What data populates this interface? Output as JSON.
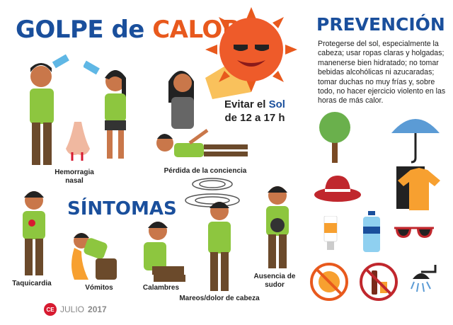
{
  "header": {
    "title_part1": "GOLPE de",
    "title_part2": "CALOR"
  },
  "sun_message": {
    "line1_prefix": "Evitar el",
    "line1_highlight": "Sol",
    "line2": "de 12 a 17 h"
  },
  "symptoms": {
    "title": "SÍNTOMAS",
    "items": [
      "Hemorragia nasal",
      "Pérdida de la conciencia",
      "Taquicardia",
      "Vómitos",
      "Calambres",
      "Mareos/dolor de cabeza",
      "Ausencia de sudor"
    ]
  },
  "prevention": {
    "title": "PREVENCIÓN",
    "text": "Protegerse del sol, especialmente la cabeza; usar ropas claras y holgadas; manenerse bien hidratado; no tomar bebidas alcohólicas ni azucaradas; tomar duchas no muy frías y, sobre todo, no hacer ejercicio violento en las horas de más calor.",
    "icons": [
      "tree-icon",
      "umbrella-icon",
      "hat-icon",
      "shirt-icon",
      "sunscreen-icon",
      "water-bottle-icon",
      "sunglasses-icon",
      "no-sun-icon",
      "no-alcohol-icon",
      "shower-icon"
    ]
  },
  "footer": {
    "logo": "CE",
    "month": "JULIO",
    "year": "2017"
  },
  "colors": {
    "blue": "#1a4f9c",
    "orange": "#e8591d",
    "shirt": "#8dc63f",
    "skin": "#c9774a",
    "pants": "#6b4a2b"
  }
}
